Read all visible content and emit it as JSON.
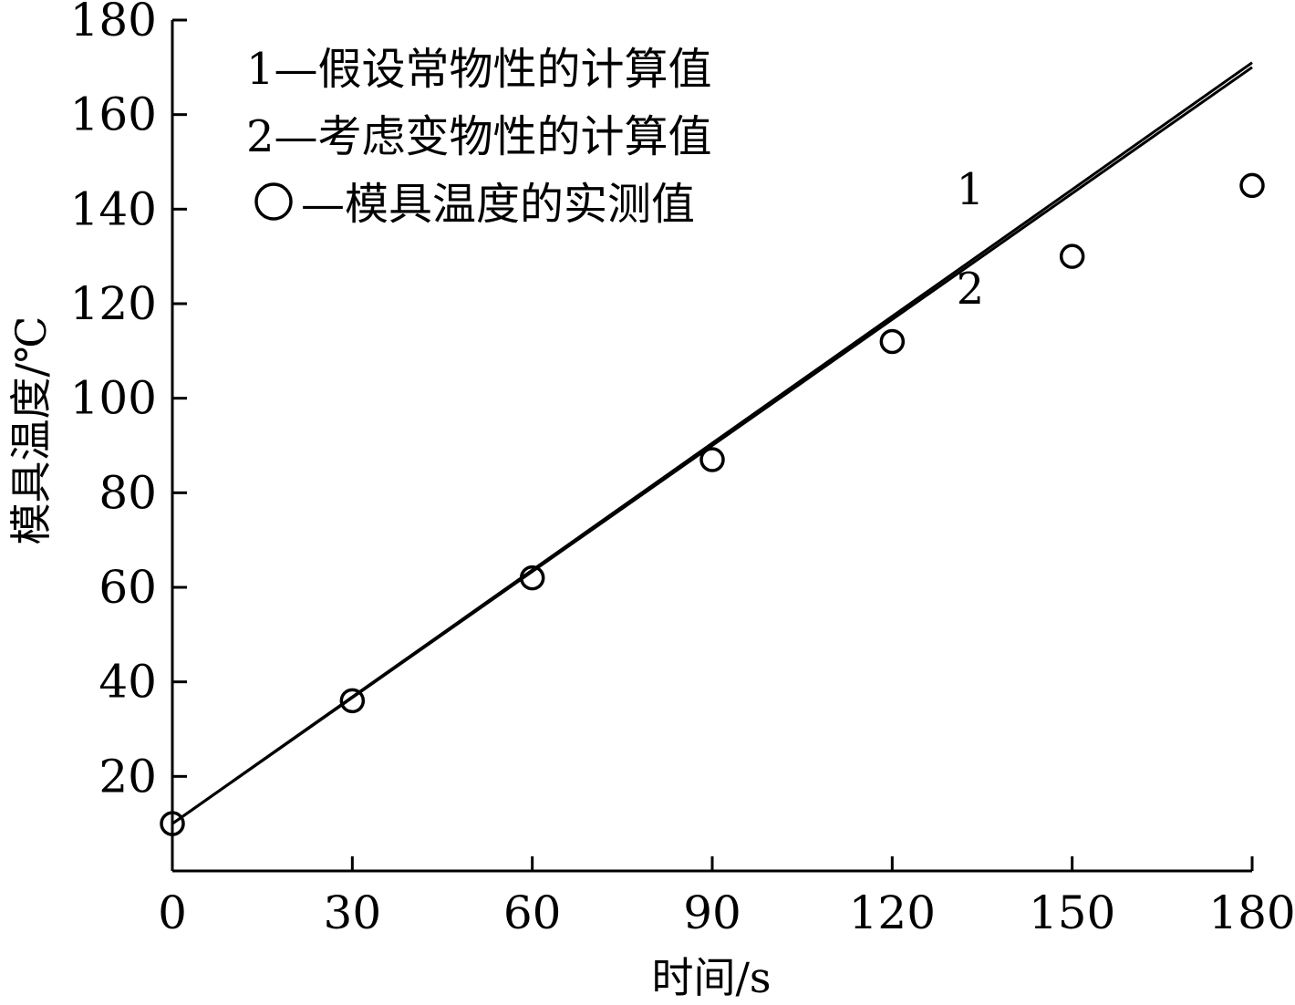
{
  "chart_data": {
    "type": "line",
    "xlabel": "时间/s",
    "ylabel": "模具温度/℃",
    "xlim": [
      0,
      180
    ],
    "ylim": [
      0,
      180
    ],
    "xticks": [
      0,
      30,
      60,
      90,
      120,
      150,
      180
    ],
    "yticks": [
      20,
      40,
      60,
      80,
      100,
      120,
      140,
      160,
      180
    ],
    "grid": false,
    "legend_position": "top-left",
    "legend": [
      "1—假设常物性的计算值",
      "2—考虑变物性的计算值",
      "—模具温度的实测值"
    ],
    "series": [
      {
        "name": "1",
        "kind": "line",
        "x": [
          0,
          180
        ],
        "y": [
          10,
          171
        ]
      },
      {
        "name": "2",
        "kind": "line",
        "x": [
          0,
          180
        ],
        "y": [
          10,
          170
        ]
      },
      {
        "kind": "scatter",
        "marker": "open-circle",
        "x": [
          0,
          30,
          60,
          90,
          120,
          150,
          180
        ],
        "y": [
          10,
          36,
          62,
          87,
          112,
          130,
          145
        ]
      }
    ],
    "curve_labels": [
      {
        "text": "1",
        "x": 133,
        "y": 141
      },
      {
        "text": "2",
        "x": 133,
        "y": 120
      }
    ],
    "colors": {
      "axis": "#000000",
      "line": "#000000",
      "marker": "#000000"
    }
  }
}
